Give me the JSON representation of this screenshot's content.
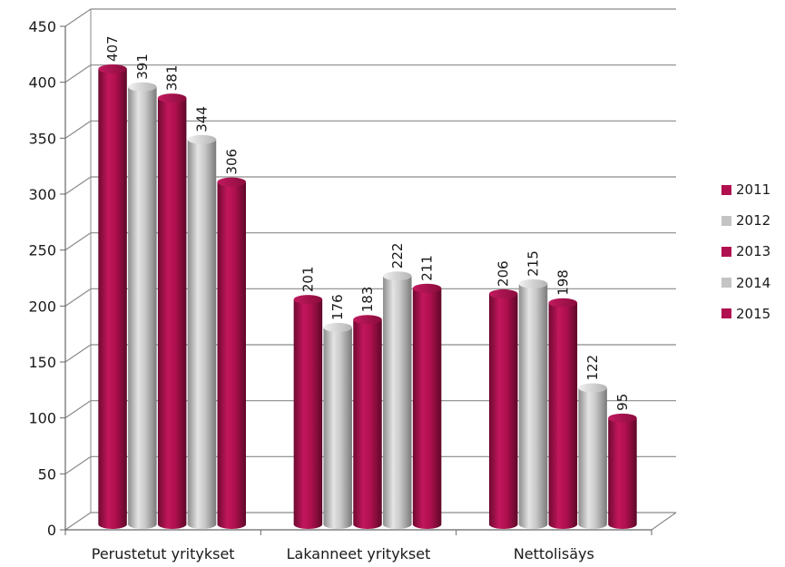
{
  "chart_data": {
    "type": "bar",
    "style": "3d-cylinder",
    "categories": [
      "Perustetut yritykset",
      "Lakanneet yritykset",
      "Nettolisäys"
    ],
    "series": [
      {
        "name": "2011",
        "color": "#b0104f",
        "values": [
          407,
          201,
          206
        ]
      },
      {
        "name": "2012",
        "color": "#c4c4c4",
        "values": [
          391,
          176,
          215
        ]
      },
      {
        "name": "2013",
        "color": "#b0104f",
        "values": [
          381,
          183,
          198
        ]
      },
      {
        "name": "2014",
        "color": "#c4c4c4",
        "values": [
          344,
          222,
          122
        ]
      },
      {
        "name": "2015",
        "color": "#b0104f",
        "values": [
          306,
          211,
          95
        ]
      }
    ],
    "ylim": [
      0,
      450
    ],
    "yticks": [
      0,
      50,
      100,
      150,
      200,
      250,
      300,
      350,
      400,
      450
    ],
    "grid": true,
    "legend": "right",
    "title": "",
    "xlabel": "",
    "ylabel": ""
  }
}
